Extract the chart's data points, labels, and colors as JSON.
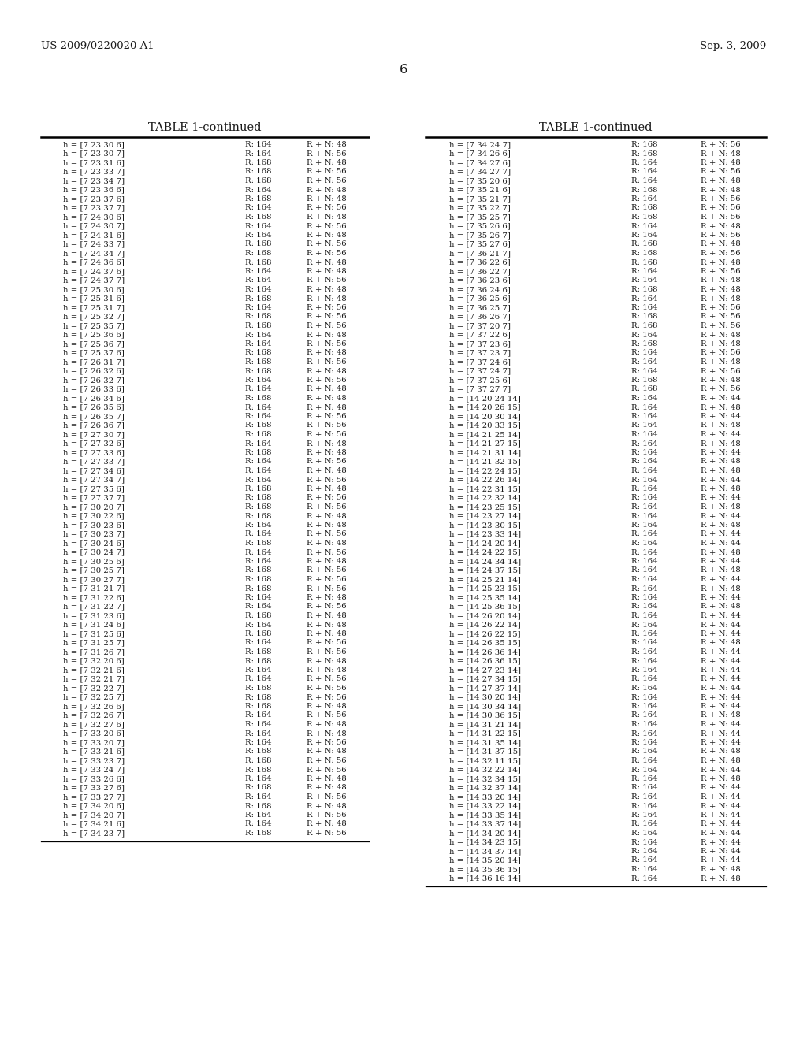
{
  "page_number": "6",
  "patent_number": "US 2009/0220020 A1",
  "patent_date": "Sep. 3, 2009",
  "table_title": "TABLE 1-continued",
  "background_color": "#ffffff",
  "text_color": "#1a1a1a",
  "left_table": {
    "rows": [
      [
        "h = [7 23 30 6]",
        "R: 164",
        "R + N: 48"
      ],
      [
        "h = [7 23 30 7]",
        "R: 164",
        "R + N: 56"
      ],
      [
        "h = [7 23 31 6]",
        "R: 168",
        "R + N: 48"
      ],
      [
        "h = [7 23 33 7]",
        "R: 168",
        "R + N: 56"
      ],
      [
        "h = [7 23 34 7]",
        "R: 168",
        "R + N: 56"
      ],
      [
        "h = [7 23 36 6]",
        "R: 164",
        "R + N: 48"
      ],
      [
        "h = [7 23 37 6]",
        "R: 168",
        "R + N: 48"
      ],
      [
        "h = [7 23 37 7]",
        "R: 164",
        "R + N: 56"
      ],
      [
        "h = [7 24 30 6]",
        "R: 168",
        "R + N: 48"
      ],
      [
        "h = [7 24 30 7]",
        "R: 164",
        "R + N: 56"
      ],
      [
        "h = [7 24 31 6]",
        "R: 164",
        "R + N: 48"
      ],
      [
        "h = [7 24 33 7]",
        "R: 168",
        "R + N: 56"
      ],
      [
        "h = [7 24 34 7]",
        "R: 168",
        "R + N: 56"
      ],
      [
        "h = [7 24 36 6]",
        "R: 168",
        "R + N: 48"
      ],
      [
        "h = [7 24 37 6]",
        "R: 164",
        "R + N: 48"
      ],
      [
        "h = [7 24 37 7]",
        "R: 164",
        "R + N: 56"
      ],
      [
        "h = [7 25 30 6]",
        "R: 164",
        "R + N: 48"
      ],
      [
        "h = [7 25 31 6]",
        "R: 168",
        "R + N: 48"
      ],
      [
        "h = [7 25 31 7]",
        "R: 164",
        "R + N: 56"
      ],
      [
        "h = [7 25 32 7]",
        "R: 168",
        "R + N: 56"
      ],
      [
        "h = [7 25 35 7]",
        "R: 168",
        "R + N: 56"
      ],
      [
        "h = [7 25 36 6]",
        "R: 164",
        "R + N: 48"
      ],
      [
        "h = [7 25 36 7]",
        "R: 164",
        "R + N: 56"
      ],
      [
        "h = [7 25 37 6]",
        "R: 168",
        "R + N: 48"
      ],
      [
        "h = [7 26 31 7]",
        "R: 168",
        "R + N: 56"
      ],
      [
        "h = [7 26 32 6]",
        "R: 168",
        "R + N: 48"
      ],
      [
        "h = [7 26 32 7]",
        "R: 164",
        "R + N: 56"
      ],
      [
        "h = [7 26 33 6]",
        "R: 164",
        "R + N: 48"
      ],
      [
        "h = [7 26 34 6]",
        "R: 168",
        "R + N: 48"
      ],
      [
        "h = [7 26 35 6]",
        "R: 164",
        "R + N: 48"
      ],
      [
        "h = [7 26 35 7]",
        "R: 164",
        "R + N: 56"
      ],
      [
        "h = [7 26 36 7]",
        "R: 168",
        "R + N: 56"
      ],
      [
        "h = [7 27 30 7]",
        "R: 168",
        "R + N: 56"
      ],
      [
        "h = [7 27 32 6]",
        "R: 164",
        "R + N: 48"
      ],
      [
        "h = [7 27 33 6]",
        "R: 168",
        "R + N: 48"
      ],
      [
        "h = [7 27 33 7]",
        "R: 164",
        "R + N: 56"
      ],
      [
        "h = [7 27 34 6]",
        "R: 164",
        "R + N: 48"
      ],
      [
        "h = [7 27 34 7]",
        "R: 164",
        "R + N: 56"
      ],
      [
        "h = [7 27 35 6]",
        "R: 168",
        "R + N: 48"
      ],
      [
        "h = [7 27 37 7]",
        "R: 168",
        "R + N: 56"
      ],
      [
        "h = [7 30 20 7]",
        "R: 168",
        "R + N: 56"
      ],
      [
        "h = [7 30 22 6]",
        "R: 168",
        "R + N: 48"
      ],
      [
        "h = [7 30 23 6]",
        "R: 164",
        "R + N: 48"
      ],
      [
        "h = [7 30 23 7]",
        "R: 164",
        "R + N: 56"
      ],
      [
        "h = [7 30 24 6]",
        "R: 168",
        "R + N: 48"
      ],
      [
        "h = [7 30 24 7]",
        "R: 164",
        "R + N: 56"
      ],
      [
        "h = [7 30 25 6]",
        "R: 164",
        "R + N: 48"
      ],
      [
        "h = [7 30 25 7]",
        "R: 168",
        "R + N: 56"
      ],
      [
        "h = [7 30 27 7]",
        "R: 168",
        "R + N: 56"
      ],
      [
        "h = [7 31 21 7]",
        "R: 168",
        "R + N: 56"
      ],
      [
        "h = [7 31 22 6]",
        "R: 164",
        "R + N: 48"
      ],
      [
        "h = [7 31 22 7]",
        "R: 164",
        "R + N: 56"
      ],
      [
        "h = [7 31 23 6]",
        "R: 168",
        "R + N: 48"
      ],
      [
        "h = [7 31 24 6]",
        "R: 164",
        "R + N: 48"
      ],
      [
        "h = [7 31 25 6]",
        "R: 168",
        "R + N: 48"
      ],
      [
        "h = [7 31 25 7]",
        "R: 164",
        "R + N: 56"
      ],
      [
        "h = [7 31 26 7]",
        "R: 168",
        "R + N: 56"
      ],
      [
        "h = [7 32 20 6]",
        "R: 168",
        "R + N: 48"
      ],
      [
        "h = [7 32 21 6]",
        "R: 164",
        "R + N: 48"
      ],
      [
        "h = [7 32 21 7]",
        "R: 164",
        "R + N: 56"
      ],
      [
        "h = [7 32 22 7]",
        "R: 168",
        "R + N: 56"
      ],
      [
        "h = [7 32 25 7]",
        "R: 168",
        "R + N: 56"
      ],
      [
        "h = [7 32 26 6]",
        "R: 168",
        "R + N: 48"
      ],
      [
        "h = [7 32 26 7]",
        "R: 164",
        "R + N: 56"
      ],
      [
        "h = [7 32 27 6]",
        "R: 164",
        "R + N: 48"
      ],
      [
        "h = [7 33 20 6]",
        "R: 164",
        "R + N: 48"
      ],
      [
        "h = [7 33 20 7]",
        "R: 164",
        "R + N: 56"
      ],
      [
        "h = [7 33 21 6]",
        "R: 168",
        "R + N: 48"
      ],
      [
        "h = [7 33 23 7]",
        "R: 168",
        "R + N: 56"
      ],
      [
        "h = [7 33 24 7]",
        "R: 168",
        "R + N: 56"
      ],
      [
        "h = [7 33 26 6]",
        "R: 164",
        "R + N: 48"
      ],
      [
        "h = [7 33 27 6]",
        "R: 168",
        "R + N: 48"
      ],
      [
        "h = [7 33 27 7]",
        "R: 164",
        "R + N: 56"
      ],
      [
        "h = [7 34 20 6]",
        "R: 168",
        "R + N: 48"
      ],
      [
        "h = [7 34 20 7]",
        "R: 164",
        "R + N: 56"
      ],
      [
        "h = [7 34 21 6]",
        "R: 164",
        "R + N: 48"
      ],
      [
        "h = [7 34 23 7]",
        "R: 168",
        "R + N: 56"
      ]
    ]
  },
  "right_table": {
    "rows": [
      [
        "h = [7 34 24 7]",
        "R: 168",
        "R + N: 56"
      ],
      [
        "h = [7 34 26 6]",
        "R: 168",
        "R + N: 48"
      ],
      [
        "h = [7 34 27 6]",
        "R: 164",
        "R + N: 48"
      ],
      [
        "h = [7 34 27 7]",
        "R: 164",
        "R + N: 56"
      ],
      [
        "h = [7 35 20 6]",
        "R: 164",
        "R + N: 48"
      ],
      [
        "h = [7 35 21 6]",
        "R: 168",
        "R + N: 48"
      ],
      [
        "h = [7 35 21 7]",
        "R: 164",
        "R + N: 56"
      ],
      [
        "h = [7 35 22 7]",
        "R: 168",
        "R + N: 56"
      ],
      [
        "h = [7 35 25 7]",
        "R: 168",
        "R + N: 56"
      ],
      [
        "h = [7 35 26 6]",
        "R: 164",
        "R + N: 48"
      ],
      [
        "h = [7 35 26 7]",
        "R: 164",
        "R + N: 56"
      ],
      [
        "h = [7 35 27 6]",
        "R: 168",
        "R + N: 48"
      ],
      [
        "h = [7 36 21 7]",
        "R: 168",
        "R + N: 56"
      ],
      [
        "h = [7 36 22 6]",
        "R: 168",
        "R + N: 48"
      ],
      [
        "h = [7 36 22 7]",
        "R: 164",
        "R + N: 56"
      ],
      [
        "h = [7 36 23 6]",
        "R: 164",
        "R + N: 48"
      ],
      [
        "h = [7 36 24 6]",
        "R: 168",
        "R + N: 48"
      ],
      [
        "h = [7 36 25 6]",
        "R: 164",
        "R + N: 48"
      ],
      [
        "h = [7 36 25 7]",
        "R: 164",
        "R + N: 56"
      ],
      [
        "h = [7 36 26 7]",
        "R: 168",
        "R + N: 56"
      ],
      [
        "h = [7 37 20 7]",
        "R: 168",
        "R + N: 56"
      ],
      [
        "h = [7 37 22 6]",
        "R: 164",
        "R + N: 48"
      ],
      [
        "h = [7 37 23 6]",
        "R: 168",
        "R + N: 48"
      ],
      [
        "h = [7 37 23 7]",
        "R: 164",
        "R + N: 56"
      ],
      [
        "h = [7 37 24 6]",
        "R: 164",
        "R + N: 48"
      ],
      [
        "h = [7 37 24 7]",
        "R: 164",
        "R + N: 56"
      ],
      [
        "h = [7 37 25 6]",
        "R: 168",
        "R + N: 48"
      ],
      [
        "h = [7 37 27 7]",
        "R: 168",
        "R + N: 56"
      ],
      [
        "h = [14 20 24 14]",
        "R: 164",
        "R + N: 44"
      ],
      [
        "h = [14 20 26 15]",
        "R: 164",
        "R + N: 48"
      ],
      [
        "h = [14 20 30 14]",
        "R: 164",
        "R + N: 44"
      ],
      [
        "h = [14 20 33 15]",
        "R: 164",
        "R + N: 48"
      ],
      [
        "h = [14 21 25 14]",
        "R: 164",
        "R + N: 44"
      ],
      [
        "h = [14 21 27 15]",
        "R: 164",
        "R + N: 48"
      ],
      [
        "h = [14 21 31 14]",
        "R: 164",
        "R + N: 44"
      ],
      [
        "h = [14 21 32 15]",
        "R: 164",
        "R + N: 48"
      ],
      [
        "h = [14 22 24 15]",
        "R: 164",
        "R + N: 48"
      ],
      [
        "h = [14 22 26 14]",
        "R: 164",
        "R + N: 44"
      ],
      [
        "h = [14 22 31 15]",
        "R: 164",
        "R + N: 48"
      ],
      [
        "h = [14 22 32 14]",
        "R: 164",
        "R + N: 44"
      ],
      [
        "h = [14 23 25 15]",
        "R: 164",
        "R + N: 48"
      ],
      [
        "h = [14 23 27 14]",
        "R: 164",
        "R + N: 44"
      ],
      [
        "h = [14 23 30 15]",
        "R: 164",
        "R + N: 48"
      ],
      [
        "h = [14 23 33 14]",
        "R: 164",
        "R + N: 44"
      ],
      [
        "h = [14 24 20 14]",
        "R: 164",
        "R + N: 44"
      ],
      [
        "h = [14 24 22 15]",
        "R: 164",
        "R + N: 48"
      ],
      [
        "h = [14 24 34 14]",
        "R: 164",
        "R + N: 44"
      ],
      [
        "h = [14 24 37 15]",
        "R: 164",
        "R + N: 48"
      ],
      [
        "h = [14 25 21 14]",
        "R: 164",
        "R + N: 44"
      ],
      [
        "h = [14 25 23 15]",
        "R: 164",
        "R + N: 48"
      ],
      [
        "h = [14 25 35 14]",
        "R: 164",
        "R + N: 44"
      ],
      [
        "h = [14 25 36 15]",
        "R: 164",
        "R + N: 48"
      ],
      [
        "h = [14 26 20 14]",
        "R: 164",
        "R + N: 44"
      ],
      [
        "h = [14 26 22 14]",
        "R: 164",
        "R + N: 44"
      ],
      [
        "h = [14 26 22 15]",
        "R: 164",
        "R + N: 44"
      ],
      [
        "h = [14 26 35 15]",
        "R: 164",
        "R + N: 48"
      ],
      [
        "h = [14 26 36 14]",
        "R: 164",
        "R + N: 44"
      ],
      [
        "h = [14 26 36 15]",
        "R: 164",
        "R + N: 44"
      ],
      [
        "h = [14 27 23 14]",
        "R: 164",
        "R + N: 44"
      ],
      [
        "h = [14 27 34 15]",
        "R: 164",
        "R + N: 44"
      ],
      [
        "h = [14 27 37 14]",
        "R: 164",
        "R + N: 44"
      ],
      [
        "h = [14 30 20 14]",
        "R: 164",
        "R + N: 44"
      ],
      [
        "h = [14 30 34 14]",
        "R: 164",
        "R + N: 44"
      ],
      [
        "h = [14 30 36 15]",
        "R: 164",
        "R + N: 48"
      ],
      [
        "h = [14 31 21 14]",
        "R: 164",
        "R + N: 44"
      ],
      [
        "h = [14 31 22 15]",
        "R: 164",
        "R + N: 44"
      ],
      [
        "h = [14 31 35 14]",
        "R: 164",
        "R + N: 44"
      ],
      [
        "h = [14 31 37 15]",
        "R: 164",
        "R + N: 48"
      ],
      [
        "h = [14 32 11 15]",
        "R: 164",
        "R + N: 48"
      ],
      [
        "h = [14 32 22 14]",
        "R: 164",
        "R + N: 44"
      ],
      [
        "h = [14 32 34 15]",
        "R: 164",
        "R + N: 48"
      ],
      [
        "h = [14 32 37 14]",
        "R: 164",
        "R + N: 44"
      ],
      [
        "h = [14 33 20 14]",
        "R: 164",
        "R + N: 44"
      ],
      [
        "h = [14 33 22 14]",
        "R: 164",
        "R + N: 44"
      ],
      [
        "h = [14 33 35 14]",
        "R: 164",
        "R + N: 44"
      ],
      [
        "h = [14 33 37 14]",
        "R: 164",
        "R + N: 44"
      ],
      [
        "h = [14 34 20 14]",
        "R: 164",
        "R + N: 44"
      ],
      [
        "h = [14 34 23 15]",
        "R: 164",
        "R + N: 44"
      ],
      [
        "h = [14 34 37 14]",
        "R: 164",
        "R + N: 44"
      ],
      [
        "h = [14 35 20 14]",
        "R: 164",
        "R + N: 44"
      ],
      [
        "h = [14 35 36 15]",
        "R: 164",
        "R + N: 48"
      ],
      [
        "h = [14 36 16 14]",
        "R: 164",
        "R + N: 48"
      ]
    ]
  }
}
